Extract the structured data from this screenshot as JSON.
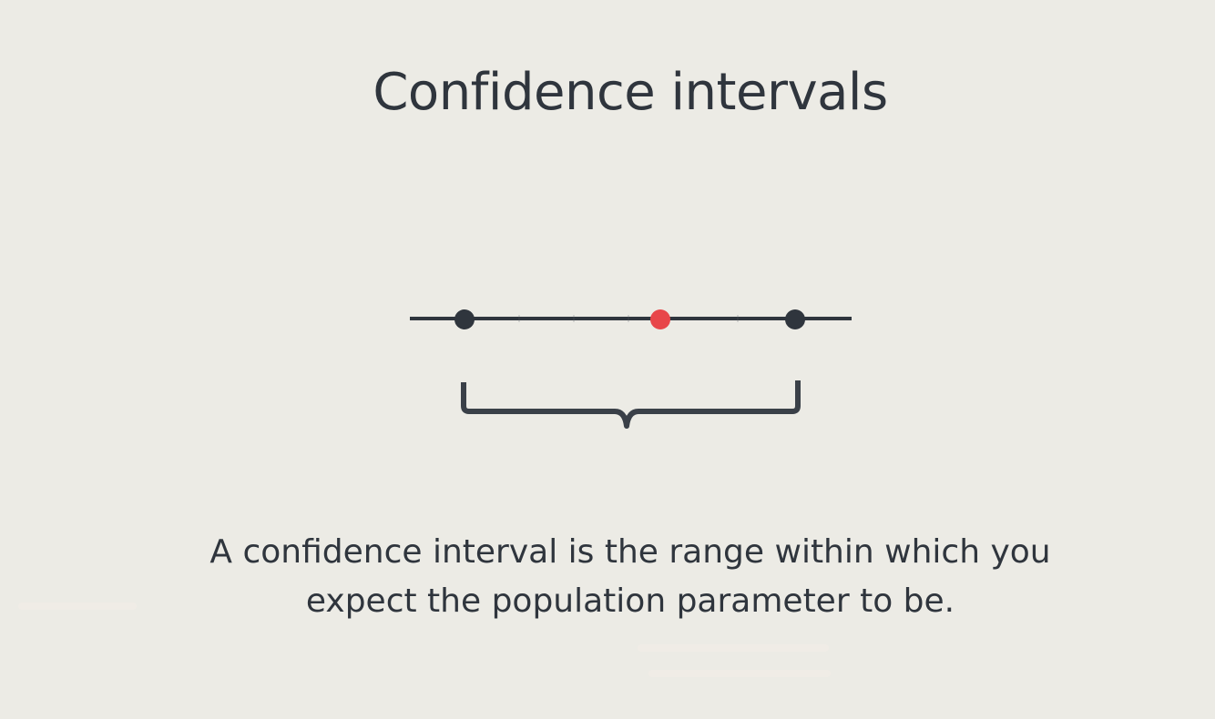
{
  "slide": {
    "title": "Confidence intervals",
    "caption_line_1": "A confidence interval is the range within which you",
    "caption_line_2": "expect the population parameter to be."
  },
  "diagram": {
    "line_color": "#2f353d",
    "estimate_color": "#e8464a",
    "lower_bound_icon": "dark-dot-icon",
    "point_estimate_icon": "red-dot-icon",
    "upper_bound_icon": "dark-dot-icon",
    "bracket_icon": "curly-brace-icon"
  }
}
